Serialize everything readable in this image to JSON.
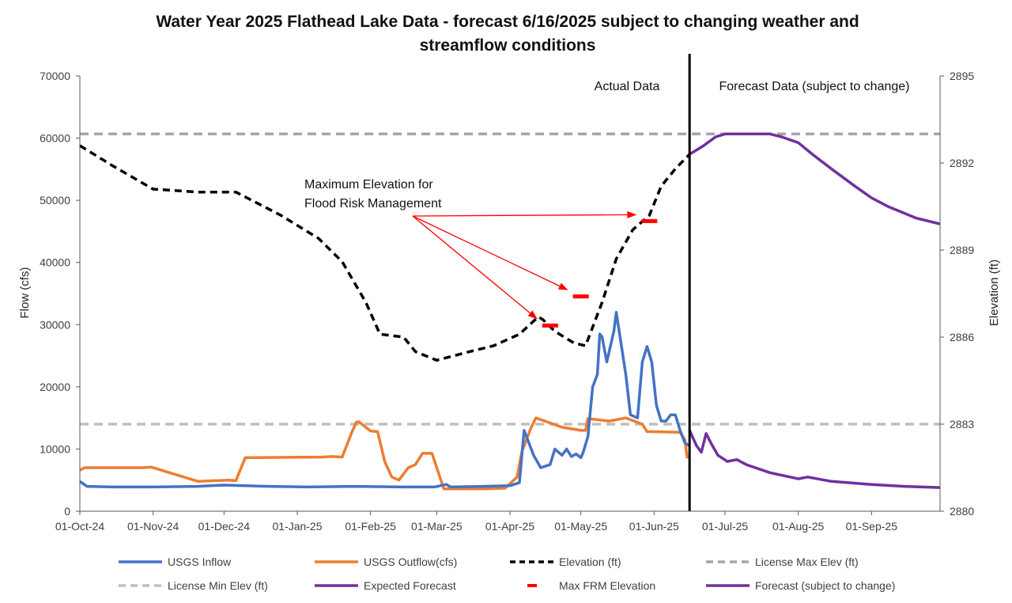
{
  "chart_data": {
    "type": "line",
    "title_lines": [
      "Water Year 2025 Flathead Lake Data - forecast 6/16/2025 subject to changing weather and",
      "streamflow conditions"
    ],
    "ylabel": "Flow (cfs)",
    "y2label": "Elevation (ft)",
    "ylim": [
      0,
      70000
    ],
    "y2lim": [
      2880,
      2895
    ],
    "xlim": [
      "2024-10-01",
      "2025-09-30"
    ],
    "y_ticks": [
      "0",
      "10000",
      "20000",
      "30000",
      "40000",
      "50000",
      "60000",
      "70000"
    ],
    "y2_ticks": [
      "2880",
      "2883",
      "2886",
      "2889",
      "2892",
      "2895"
    ],
    "x_ticks": [
      "01-Oct-24",
      "01-Nov-24",
      "01-Dec-24",
      "01-Jan-25",
      "01-Feb-25",
      "01-Mar-25",
      "01-Apr-25",
      "01-May-25",
      "01-Jun-25",
      "01-Jul-25",
      "01-Aug-25",
      "01-Sep-25"
    ],
    "grid": false,
    "legend_position": "bottom",
    "colors": {
      "inflow": "#4472C4",
      "outflow": "#ED7D31",
      "elevation": "#000000",
      "license_max": "#A6A6A6",
      "license_min": "#BFBFBF",
      "forecast": "#7030A0",
      "frm": "#FF0000",
      "arrow": "#FF0000"
    },
    "annotations": {
      "actual": "Actual Data",
      "forecast": "Forecast Data (subject to change)",
      "frm_line1": "Maximum Elevation for",
      "frm_line2": "Flood Risk Management",
      "divider_date": "2025-06-16"
    },
    "legend": [
      "USGS Inflow",
      "USGS Outflow(cfs)",
      "Elevation (ft)",
      "License Max Elev (ft)",
      "License Min Elev (ft)",
      "Expected Forecast",
      "Max FRM Elevation",
      "Forecast (subject to change)"
    ],
    "series": [
      {
        "name": "USGS Inflow",
        "axis": "flow",
        "x": [
          "2024-10-01",
          "2024-10-04",
          "2024-10-15",
          "2024-11-01",
          "2024-11-20",
          "2024-12-01",
          "2024-12-20",
          "2025-01-05",
          "2025-01-25",
          "2025-02-15",
          "2025-02-28",
          "2025-03-05",
          "2025-03-07",
          "2025-03-20",
          "2025-04-01",
          "2025-04-05",
          "2025-04-07",
          "2025-04-11",
          "2025-04-14",
          "2025-04-18",
          "2025-04-20",
          "2025-04-23",
          "2025-04-25",
          "2025-04-27",
          "2025-04-29",
          "2025-05-01",
          "2025-05-02",
          "2025-05-04",
          "2025-05-06",
          "2025-05-08",
          "2025-05-09",
          "2025-05-10",
          "2025-05-12",
          "2025-05-15",
          "2025-05-16",
          "2025-05-18",
          "2025-05-20",
          "2025-05-22",
          "2025-05-25",
          "2025-05-27",
          "2025-05-29",
          "2025-05-31",
          "2025-06-02",
          "2025-06-04",
          "2025-06-06",
          "2025-06-08",
          "2025-06-10",
          "2025-06-12",
          "2025-06-14",
          "2025-06-16"
        ],
        "values": [
          4800,
          4000,
          3900,
          3900,
          4000,
          4200,
          4000,
          3900,
          4000,
          3900,
          3900,
          4300,
          3900,
          4000,
          4100,
          4600,
          13000,
          9000,
          7000,
          7500,
          10000,
          9000,
          10000,
          8800,
          9200,
          8600,
          9500,
          12000,
          20000,
          22000,
          28500,
          28000,
          24000,
          29000,
          32000,
          27000,
          22000,
          15500,
          15000,
          24000,
          26500,
          24000,
          17000,
          14500,
          14500,
          15500,
          15500,
          13000,
          11000,
          10500
        ]
      },
      {
        "name": "USGS Outflow(cfs)",
        "axis": "flow",
        "x": [
          "2024-10-01",
          "2024-10-03",
          "2024-10-28",
          "2024-10-31",
          "2024-11-01",
          "2024-11-20",
          "2024-12-03",
          "2024-12-06",
          "2024-12-10",
          "2025-01-11",
          "2025-01-16",
          "2025-01-20",
          "2025-01-24",
          "2025-01-26",
          "2025-01-27",
          "2025-02-01",
          "2025-02-04",
          "2025-02-07",
          "2025-02-10",
          "2025-02-13",
          "2025-02-17",
          "2025-02-20",
          "2025-02-23",
          "2025-02-27",
          "2025-03-04",
          "2025-03-22",
          "2025-03-30",
          "2025-04-04",
          "2025-04-06",
          "2025-04-10",
          "2025-04-12",
          "2025-04-23",
          "2025-05-01",
          "2025-05-03",
          "2025-05-04",
          "2025-05-13",
          "2025-05-20",
          "2025-05-27",
          "2025-05-29",
          "2025-06-12",
          "2025-06-14",
          "2025-06-15"
        ],
        "values": [
          6600,
          7000,
          7000,
          7100,
          7000,
          4800,
          5000,
          4900,
          8600,
          8700,
          8800,
          8700,
          12600,
          14300,
          14400,
          12900,
          12800,
          8000,
          5500,
          5000,
          7000,
          7500,
          9300,
          9300,
          3600,
          3600,
          3700,
          5500,
          9500,
          13500,
          15000,
          13500,
          13000,
          13000,
          14900,
          14500,
          15000,
          14000,
          12800,
          12700,
          11500,
          8500
        ]
      },
      {
        "name": "Elevation (ft)",
        "axis": "elev",
        "x": [
          "2024-10-01",
          "2024-10-15",
          "2024-11-01",
          "2024-11-20",
          "2024-12-06",
          "2024-12-25",
          "2025-01-10",
          "2025-01-20",
          "2025-01-30",
          "2025-02-05",
          "2025-02-15",
          "2025-02-20",
          "2025-03-01",
          "2025-03-15",
          "2025-03-25",
          "2025-04-05",
          "2025-04-13",
          "2025-04-15",
          "2025-04-20",
          "2025-04-28",
          "2025-05-03",
          "2025-05-10",
          "2025-05-16",
          "2025-05-23",
          "2025-05-30",
          "2025-06-04",
          "2025-06-10",
          "2025-06-16"
        ],
        "values": [
          2892.6,
          2891.9,
          2891.1,
          2891.0,
          2891.0,
          2890.2,
          2889.4,
          2888.6,
          2887.2,
          2886.1,
          2886.0,
          2885.5,
          2885.2,
          2885.5,
          2885.7,
          2886.1,
          2886.7,
          2886.6,
          2886.2,
          2885.8,
          2885.7,
          2887.2,
          2888.7,
          2889.7,
          2890.2,
          2891.2,
          2891.8,
          2892.3
        ]
      },
      {
        "name": "License Max Elev (ft)",
        "axis": "elev",
        "x": [
          "2024-10-01",
          "2025-09-30"
        ],
        "values": [
          2893.0,
          2893.0
        ]
      },
      {
        "name": "License Min Elev (ft)",
        "axis": "elev",
        "x": [
          "2024-10-01",
          "2025-09-30"
        ],
        "values": [
          2883.0,
          2883.0
        ]
      },
      {
        "name": "Expected Forecast",
        "axis": "elev",
        "x": [
          "2025-06-16",
          "2025-06-22",
          "2025-06-27",
          "2025-07-01",
          "2025-07-10",
          "2025-07-20",
          "2025-07-25",
          "2025-08-01",
          "2025-08-07",
          "2025-08-15",
          "2025-08-25",
          "2025-09-01",
          "2025-09-08",
          "2025-09-20",
          "2025-09-30"
        ],
        "values": [
          2892.3,
          2892.6,
          2892.9,
          2893.0,
          2893.0,
          2893.0,
          2892.9,
          2892.7,
          2892.3,
          2891.8,
          2891.2,
          2890.8,
          2890.5,
          2890.1,
          2889.9
        ]
      },
      {
        "name": "Max FRM Elevation",
        "axis": "elev",
        "style": "marker",
        "x": [
          "2025-04-18",
          "2025-05-01",
          "2025-05-30"
        ],
        "values": [
          2886.4,
          2887.4,
          2890.0
        ]
      },
      {
        "name": "Forecast (subject to change)",
        "axis": "flow",
        "x": [
          "2025-06-16",
          "2025-06-19",
          "2025-06-21",
          "2025-06-23",
          "2025-06-25",
          "2025-06-28",
          "2025-07-02",
          "2025-07-06",
          "2025-07-10",
          "2025-07-20",
          "2025-08-01",
          "2025-08-05",
          "2025-08-15",
          "2025-09-01",
          "2025-09-15",
          "2025-09-30"
        ],
        "values": [
          13000,
          10500,
          9500,
          12500,
          11000,
          9000,
          8000,
          8300,
          7500,
          6200,
          5200,
          5500,
          4800,
          4300,
          4000,
          3800
        ]
      }
    ]
  }
}
